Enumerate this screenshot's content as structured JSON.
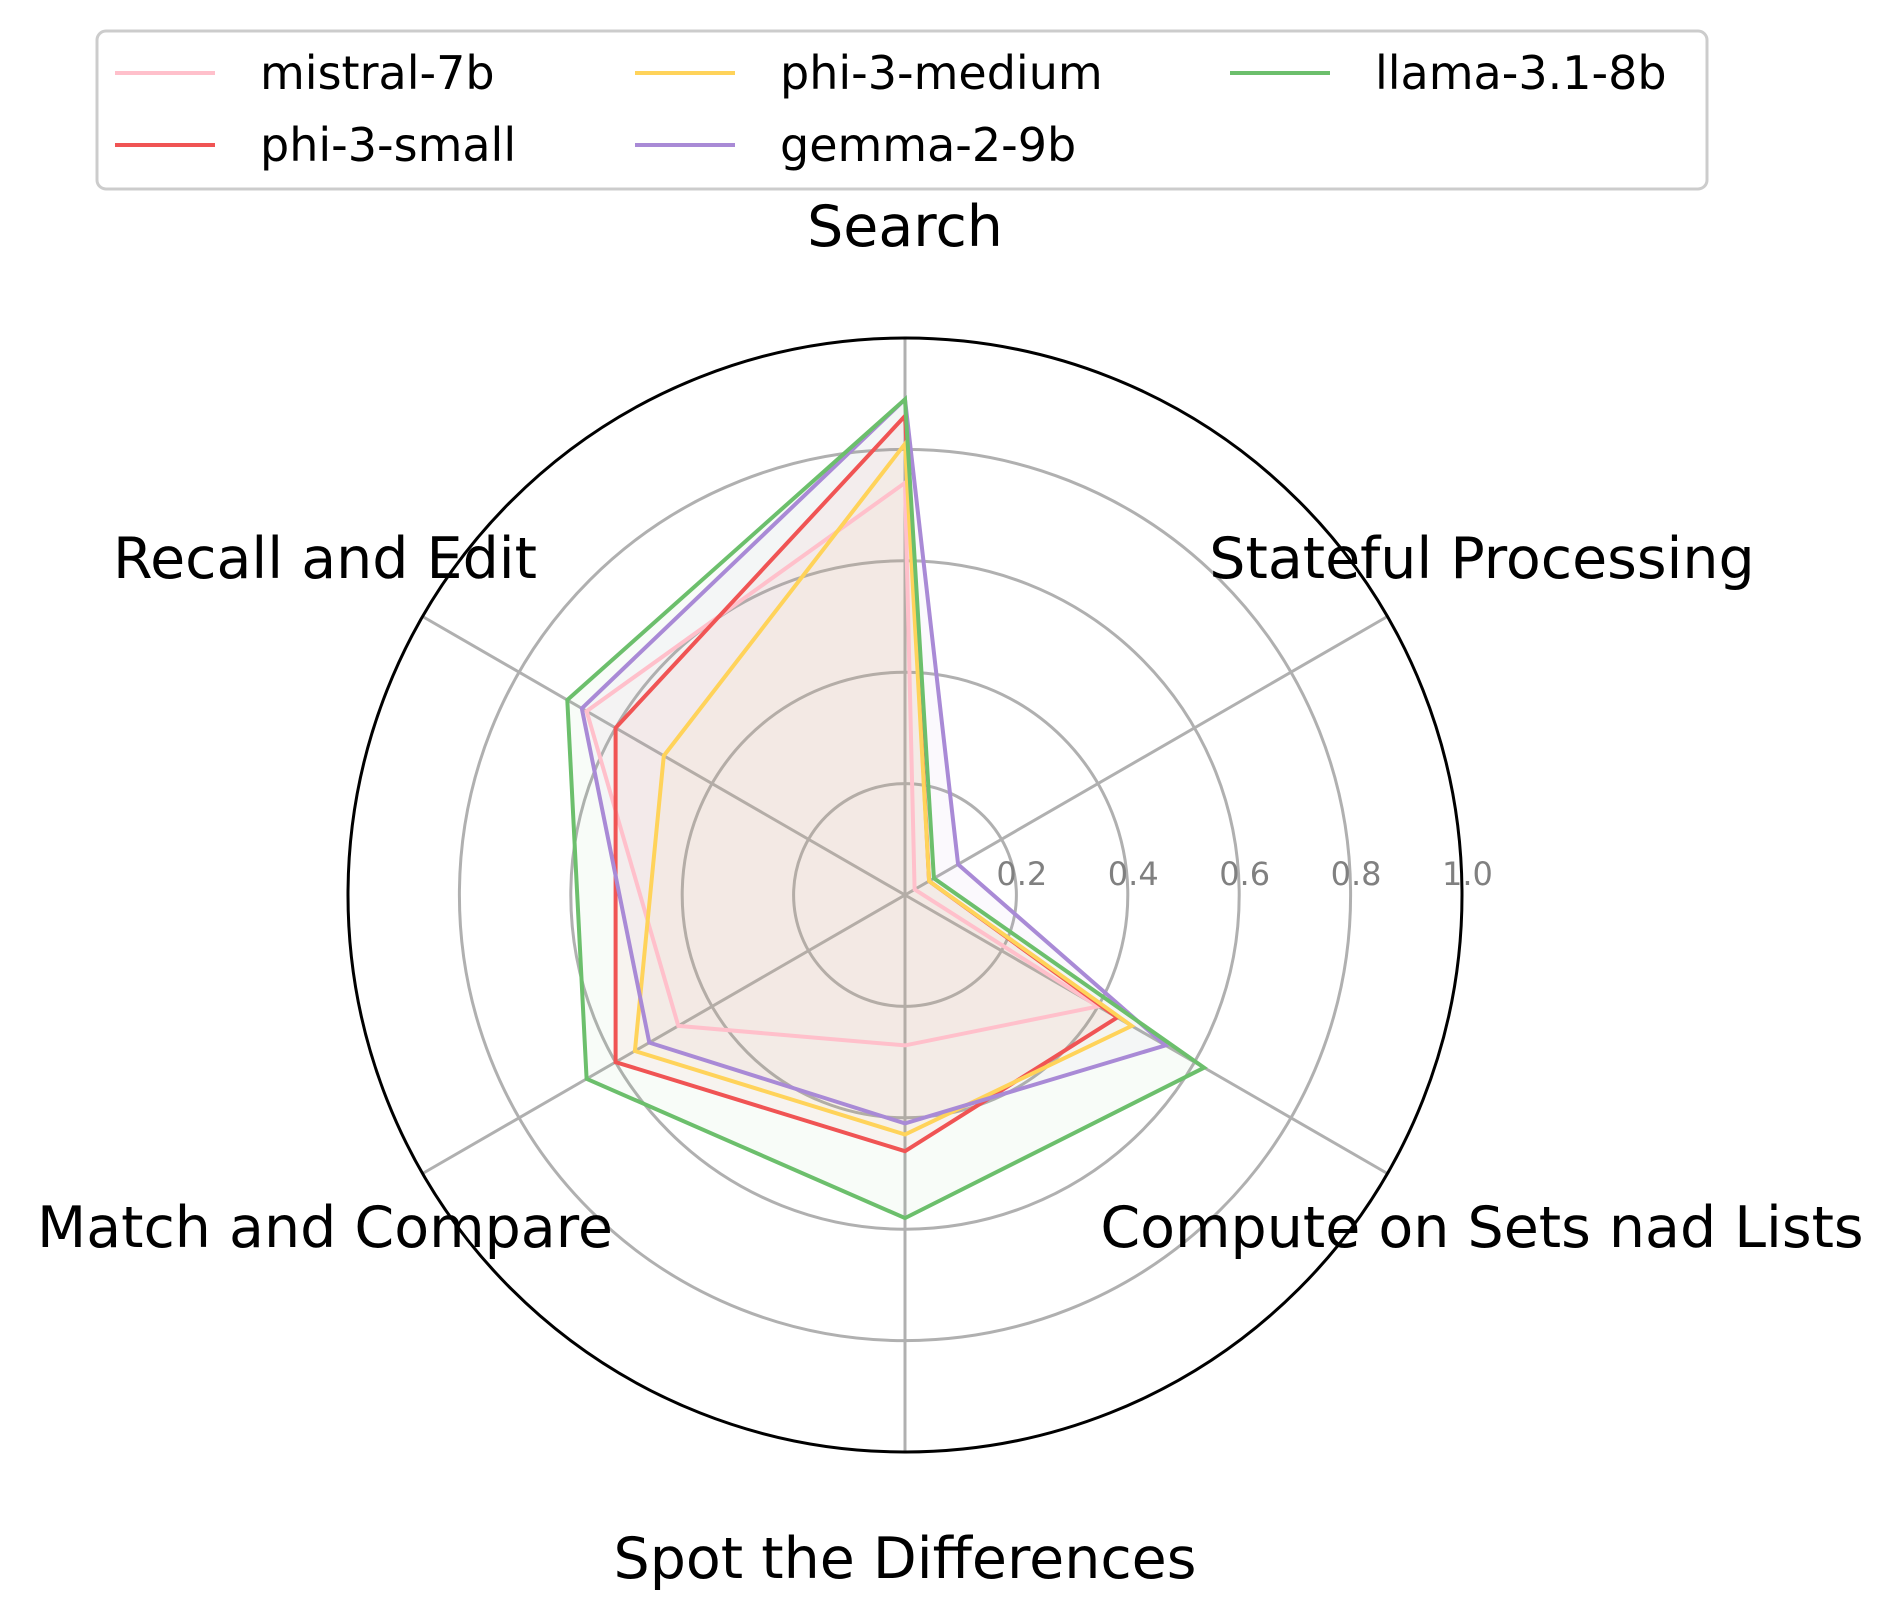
{
  "chart_data": {
    "type": "radar",
    "categories": [
      "Search",
      "Stateful Processing",
      "Compute on Sets nad Lists",
      "Spot the Differences",
      "Match and Compare",
      "Recall and Edit"
    ],
    "rlim": [
      0,
      1.0
    ],
    "r_ticks": [
      "0.2",
      "0.4",
      "0.6",
      "0.8",
      "1.0"
    ],
    "grid": true,
    "legend_position": "top",
    "series": [
      {
        "name": "mistral-7b",
        "color": "#ffc0cb",
        "values": [
          0.74,
          0.02,
          0.4,
          0.27,
          0.47,
          0.66
        ]
      },
      {
        "name": "phi-3-small",
        "color": "#f05454",
        "values": [
          0.86,
          0.05,
          0.44,
          0.46,
          0.6,
          0.6
        ]
      },
      {
        "name": "phi-3-medium",
        "color": "#ffd35a",
        "values": [
          0.81,
          0.05,
          0.47,
          0.43,
          0.56,
          0.5
        ]
      },
      {
        "name": "gemma-2-9b",
        "color": "#a98ad6",
        "values": [
          0.89,
          0.11,
          0.54,
          0.41,
          0.53,
          0.67
        ]
      },
      {
        "name": "llama-3.1-8b",
        "color": "#6cbf6c",
        "values": [
          0.89,
          0.06,
          0.62,
          0.58,
          0.66,
          0.7
        ]
      }
    ]
  }
}
